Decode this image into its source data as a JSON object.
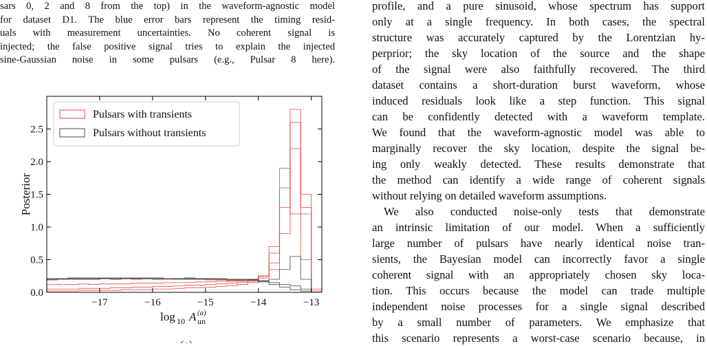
{
  "caption_lines": [
    "sars 0, 2 and 8 from the top) in the waveform-agnostic model",
    "for dataset D1. The blue error bars represent the timing resid-",
    "uals with measurement uncertainties. No coherent signal is",
    "injected; the false positive signal tries to explain the injected",
    "sine-Gaussian noise in some pulsars (e.g., Pulsar 8 here)."
  ],
  "chart_data": {
    "type": "step-histogram",
    "xlabel": {
      "log": "log",
      "base": "10",
      "var": "A",
      "sup": "(a)",
      "sub": "un"
    },
    "ylabel": "Posterior",
    "xlim": [
      -18,
      -12.8
    ],
    "ylim": [
      0,
      3
    ],
    "xticks": [
      {
        "value": -17,
        "label": "−17"
      },
      {
        "value": -16,
        "label": "−16"
      },
      {
        "value": -15,
        "label": "−15"
      },
      {
        "value": -14,
        "label": "−14"
      },
      {
        "value": -13,
        "label": "−13"
      }
    ],
    "yticks": [
      {
        "value": 0,
        "label": "0.0"
      },
      {
        "value": 0.5,
        "label": "0.5"
      },
      {
        "value": 1,
        "label": "1.0"
      },
      {
        "value": 1.5,
        "label": "1.5"
      },
      {
        "value": 2,
        "label": "2.0"
      },
      {
        "value": 2.5,
        "label": "2.5"
      }
    ],
    "legend": "upper left",
    "bins": [
      -18,
      -17.8,
      -17.6,
      -17.4,
      -17.2,
      -17,
      -16.8,
      -16.6,
      -16.4,
      -16.2,
      -16,
      -15.8,
      -15.6,
      -15.4,
      -15.2,
      -15,
      -14.8,
      -14.6,
      -14.4,
      -14.2,
      -14,
      -13.8,
      -13.6,
      -13.4,
      -13.2,
      -13,
      -12.8
    ],
    "series": [
      {
        "name": "Pulsars with transients",
        "color": "#e8453c",
        "histograms": [
          [
            0.2,
            0.2,
            0.21,
            0.2,
            0.2,
            0.21,
            0.2,
            0.21,
            0.2,
            0.21,
            0.21,
            0.2,
            0.21,
            0.2,
            0.2,
            0.19,
            0.19,
            0.18,
            0.17,
            0.17,
            0.22,
            0.35,
            0.9,
            2.8,
            1.2,
            0.0
          ],
          [
            0.12,
            0.12,
            0.12,
            0.13,
            0.12,
            0.13,
            0.13,
            0.13,
            0.14,
            0.14,
            0.14,
            0.15,
            0.15,
            0.15,
            0.16,
            0.16,
            0.17,
            0.17,
            0.18,
            0.2,
            0.25,
            0.45,
            1.3,
            2.6,
            1.5,
            0.02
          ],
          [
            0.05,
            0.05,
            0.05,
            0.06,
            0.06,
            0.06,
            0.07,
            0.07,
            0.08,
            0.08,
            0.09,
            0.09,
            0.1,
            0.11,
            0.11,
            0.12,
            0.13,
            0.14,
            0.15,
            0.18,
            0.25,
            0.6,
            1.6,
            2.2,
            1.3,
            0.05
          ],
          [
            0.02,
            0.02,
            0.02,
            0.03,
            0.03,
            0.03,
            0.03,
            0.04,
            0.04,
            0.04,
            0.05,
            0.05,
            0.06,
            0.07,
            0.07,
            0.08,
            0.09,
            0.1,
            0.12,
            0.15,
            0.25,
            0.7,
            1.9,
            1.2,
            0.5,
            0.0
          ]
        ]
      },
      {
        "name": "Pulsars without transients",
        "color": "#444444",
        "histograms": [
          [
            0.2,
            0.21,
            0.21,
            0.22,
            0.21,
            0.22,
            0.22,
            0.21,
            0.22,
            0.22,
            0.22,
            0.21,
            0.21,
            0.22,
            0.21,
            0.21,
            0.2,
            0.2,
            0.2,
            0.2,
            0.18,
            0.15,
            0.12,
            0.1,
            0.05,
            0.0
          ],
          [
            0.19,
            0.2,
            0.2,
            0.2,
            0.2,
            0.21,
            0.2,
            0.21,
            0.21,
            0.21,
            0.2,
            0.21,
            0.2,
            0.2,
            0.2,
            0.2,
            0.2,
            0.19,
            0.19,
            0.19,
            0.17,
            0.2,
            0.35,
            0.55,
            0.2,
            0.0
          ],
          [
            0.21,
            0.21,
            0.22,
            0.21,
            0.22,
            0.21,
            0.21,
            0.22,
            0.21,
            0.21,
            0.21,
            0.21,
            0.21,
            0.21,
            0.21,
            0.21,
            0.21,
            0.2,
            0.2,
            0.19,
            0.16,
            0.12,
            0.08,
            0.04,
            0.02,
            0.0
          ]
        ]
      }
    ]
  },
  "subfigure_label": "(a)",
  "paragraphs": [
    [
      "profile, and a pure sinusoid, whose spectrum has support",
      "only at a single frequency. In both cases, the spectral",
      "structure was accurately captured by the Lorentzian hy-",
      "perprior; the sky location of the source and the shape",
      "of the signal were also faithfully recovered. The third",
      "dataset contains a short-duration burst waveform, whose",
      "induced residuals look like a step function. This signal",
      "can be confidently detected with a waveform template.",
      "We found that the waveform-agnostic model was able to",
      "marginally recover the sky location, despite the signal be-",
      "ing only weakly detected. These results demonstrate that",
      "the method can identify a wide range of coherent signals",
      "without relying on detailed waveform assumptions."
    ],
    [
      "We also conducted noise-only tests that demonstrate",
      "an intrinsic limitation of our model. When a sufficiently",
      "large number of pulsars have nearly identical noise tran-",
      "sients, the Bayesian model can incorrectly favor a single",
      "coherent signal with an appropriately chosen sky loca-",
      "tion. This occurs because the model can trade multiple",
      "independent noise processes for a single signal described",
      "by a small number of parameters. We emphasize that",
      "this scenario represents a worst-case scenario because, in"
    ]
  ]
}
